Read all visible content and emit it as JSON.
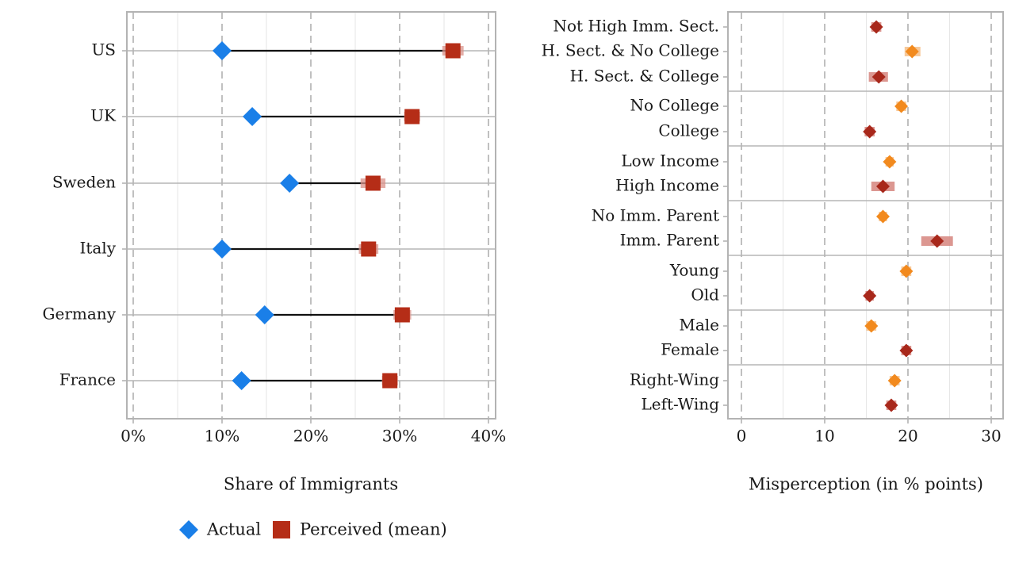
{
  "chart_data": [
    {
      "type": "dumbbell",
      "xlabel": "Share of Immigrants",
      "xlim": [
        0,
        40
      ],
      "xticks": [
        0,
        10,
        20,
        30,
        40
      ],
      "tick_suffix": "%",
      "categories": [
        "US",
        "UK",
        "Sweden",
        "Italy",
        "Germany",
        "France"
      ],
      "series": [
        {
          "name": "Actual",
          "color": "#1a7fe8",
          "marker": "diamond",
          "values": [
            10.0,
            13.4,
            17.6,
            10.0,
            14.8,
            12.2
          ]
        },
        {
          "name": "Perceived (mean)",
          "color": "#b52d17",
          "marker": "square",
          "values": [
            36.0,
            31.4,
            27.0,
            26.5,
            30.3,
            28.9
          ],
          "ci": [
            [
              34.8,
              37.2
            ],
            [
              30.5,
              32.3
            ],
            [
              25.6,
              28.4
            ],
            [
              25.4,
              27.6
            ],
            [
              29.3,
              31.3
            ],
            [
              28.0,
              29.8
            ]
          ]
        }
      ],
      "legend": {
        "position": "bottom",
        "items": [
          {
            "label": "Actual",
            "color": "#1a7fe8",
            "marker": "diamond"
          },
          {
            "label": "Perceived (mean)",
            "color": "#b52d17",
            "marker": "square"
          }
        ]
      }
    },
    {
      "type": "dot",
      "xlabel": "Misperception (in % points)",
      "xlim": [
        0,
        30
      ],
      "xticks": [
        0,
        10,
        20,
        30
      ],
      "groups": [
        {
          "items": [
            {
              "label": "Not High Imm. Sect.",
              "value": 16.2,
              "ci": [
                15.6,
                16.8
              ],
              "color": "#a8281b"
            },
            {
              "label": "H. Sect. & No College",
              "value": 20.5,
              "ci": [
                19.6,
                21.5
              ],
              "color": "#f28a1e"
            },
            {
              "label": "H. Sect. & College",
              "value": 16.5,
              "ci": [
                15.3,
                17.6
              ],
              "color": "#a8281b"
            }
          ]
        },
        {
          "items": [
            {
              "label": "No College",
              "value": 19.2,
              "ci": [
                18.6,
                19.8
              ],
              "color": "#f28a1e"
            },
            {
              "label": "College",
              "value": 15.4,
              "ci": [
                14.8,
                16.0
              ],
              "color": "#a8281b"
            }
          ]
        },
        {
          "items": [
            {
              "label": "Low Income",
              "value": 17.8,
              "ci": [
                17.3,
                18.3
              ],
              "color": "#f28a1e"
            },
            {
              "label": "High Income",
              "value": 17.0,
              "ci": [
                15.6,
                18.4
              ],
              "color": "#a8281b"
            }
          ]
        },
        {
          "items": [
            {
              "label": "No Imm. Parent",
              "value": 17.0,
              "ci": [
                16.5,
                17.5
              ],
              "color": "#f28a1e"
            },
            {
              "label": "Imm. Parent",
              "value": 23.5,
              "ci": [
                21.6,
                25.4
              ],
              "color": "#a8281b"
            }
          ]
        },
        {
          "items": [
            {
              "label": "Young",
              "value": 19.8,
              "ci": [
                19.2,
                20.4
              ],
              "color": "#f28a1e"
            },
            {
              "label": "Old",
              "value": 15.4,
              "ci": [
                14.9,
                15.9
              ],
              "color": "#a8281b"
            }
          ]
        },
        {
          "items": [
            {
              "label": "Male",
              "value": 15.6,
              "ci": [
                15.0,
                16.2
              ],
              "color": "#f28a1e"
            },
            {
              "label": "Female",
              "value": 19.8,
              "ci": [
                19.2,
                20.4
              ],
              "color": "#a8281b"
            }
          ]
        },
        {
          "items": [
            {
              "label": "Right-Wing",
              "value": 18.4,
              "ci": [
                17.8,
                19.0
              ],
              "color": "#f28a1e"
            },
            {
              "label": "Left-Wing",
              "value": 18.0,
              "ci": [
                17.4,
                18.6
              ],
              "color": "#a8281b"
            }
          ]
        }
      ]
    }
  ]
}
